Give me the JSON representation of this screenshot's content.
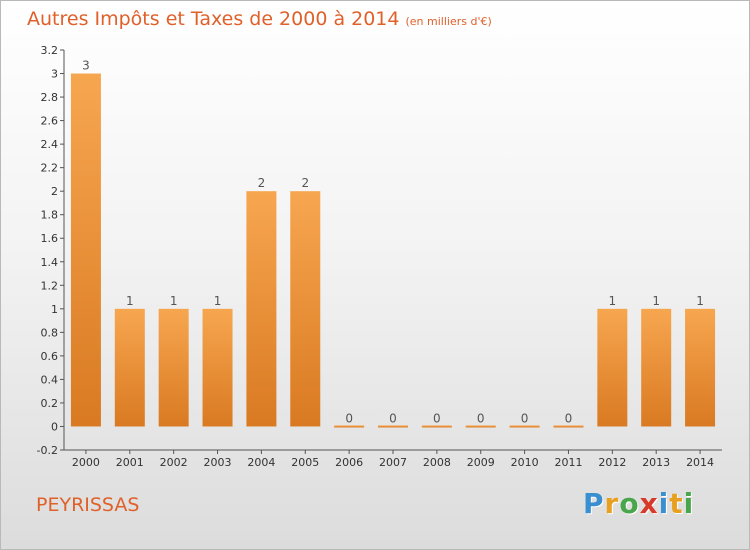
{
  "header": {
    "title": "Autres Impôts et Taxes de 2000 à 2014",
    "unit": "(en milliers d'€)"
  },
  "footer": {
    "place": "PEYRISSAS",
    "brand_letters": [
      "P",
      "r",
      "o",
      "x",
      "i",
      "t",
      "i"
    ],
    "brand_colors": [
      "#3a8fd0",
      "#e8a020",
      "#4aa64a",
      "#d83a2a",
      "#3a8fd0",
      "#e8a020",
      "#4aa64a"
    ]
  },
  "colors": {
    "bar_top": "#f7a650",
    "bar_bottom": "#d97a22",
    "title": "#e0602a",
    "axis": "#555555"
  },
  "chart_data": {
    "type": "bar",
    "title": "Autres Impôts et Taxes de 2000 à 2014",
    "subtitle": "(en milliers d'€)",
    "categories": [
      "2000",
      "2001",
      "2002",
      "2003",
      "2004",
      "2005",
      "2006",
      "2007",
      "2008",
      "2009",
      "2010",
      "2011",
      "2012",
      "2013",
      "2014"
    ],
    "values": [
      3,
      1,
      1,
      1,
      2,
      2,
      0,
      0,
      0,
      0,
      0,
      0,
      1,
      1,
      1
    ],
    "data_labels": [
      "3",
      "1",
      "1",
      "1",
      "2",
      "2",
      "0",
      "0",
      "0",
      "0",
      "0",
      "0",
      "1",
      "1",
      "1"
    ],
    "ylim": [
      -0.2,
      3.2
    ],
    "yticks": [
      -0.2,
      0,
      0.2,
      0.4,
      0.6,
      0.8,
      1,
      1.2,
      1.4,
      1.6,
      1.8,
      2,
      2.2,
      2.4,
      2.6,
      2.8,
      3,
      3.2
    ],
    "ytick_labels": [
      "-0.2",
      "0",
      "0.2",
      "0.4",
      "0.6",
      "0.8",
      "1",
      "1.2",
      "1.4",
      "1.6",
      "1.8",
      "2",
      "2.2",
      "2.4",
      "2.6",
      "2.8",
      "3",
      "3.2"
    ],
    "xlabel": "",
    "ylabel": "",
    "grid": false,
    "legend": "none"
  }
}
